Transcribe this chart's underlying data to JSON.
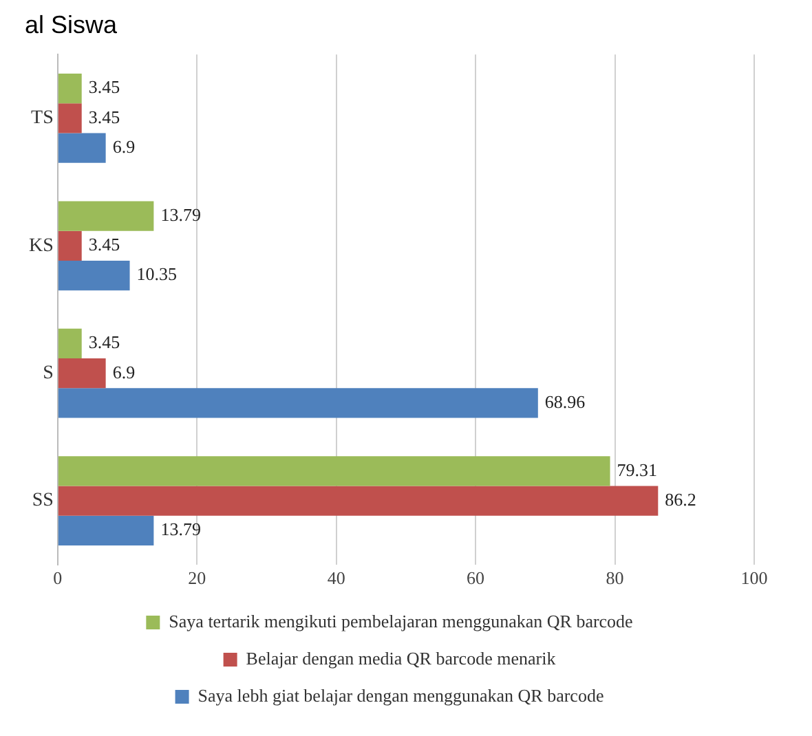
{
  "chart_data": {
    "type": "bar",
    "title": "al Siswa",
    "orientation": "horizontal",
    "categories": [
      "TS",
      "KS",
      "S",
      "SS"
    ],
    "series": [
      {
        "name": "Saya tertarik mengikuti pembelajaran menggunakan QR barcode",
        "color": "#9bbb59",
        "values": [
          3.45,
          13.79,
          3.45,
          79.31
        ]
      },
      {
        "name": "Belajar dengan media QR barcode menarik",
        "color": "#c0504d",
        "values": [
          3.45,
          3.45,
          6.9,
          86.2
        ]
      },
      {
        "name": "Saya lebh giat belajar dengan menggunakan QR barcode",
        "color": "#4f81bd",
        "values": [
          6.9,
          10.35,
          68.96,
          13.79
        ]
      }
    ],
    "xlim": [
      0,
      100
    ],
    "xticks": [
      0,
      20,
      40,
      60,
      80,
      100
    ],
    "grid": "x",
    "legend": "bottom",
    "data_labels": true
  }
}
